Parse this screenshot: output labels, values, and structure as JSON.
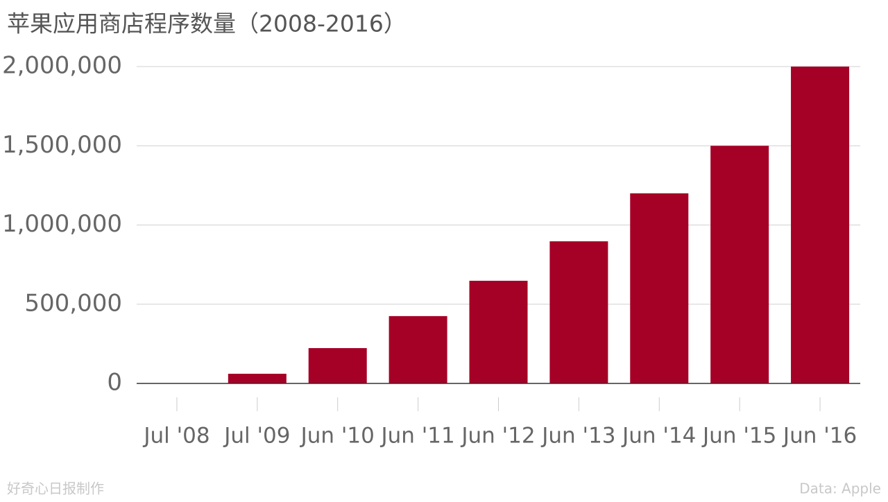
{
  "chart_data": {
    "type": "bar",
    "title": "苹果应用商店程序数量（2008-2016）",
    "categories": [
      "Jul '08",
      "Jul '09",
      "Jun '10",
      "Jun '11",
      "Jun '12",
      "Jun '13",
      "Jun '14",
      "Jun '15",
      "Jun '16"
    ],
    "values": [
      500,
      61000,
      223000,
      425000,
      648000,
      897000,
      1200000,
      1500000,
      2000000
    ],
    "color": "#a50026",
    "ylim": [
      0,
      2000000
    ],
    "yticks": [
      0,
      {
        "value": 500000,
        "label": "500,000"
      },
      {
        "value": 1000000,
        "label": "1,000,000"
      },
      {
        "value": 1500000,
        "label": "1,500,000"
      },
      {
        "value": 2000000,
        "label": "2,000,000"
      }
    ],
    "grid": true,
    "credit": "好奇心日报制作",
    "source": "Data: Apple"
  }
}
